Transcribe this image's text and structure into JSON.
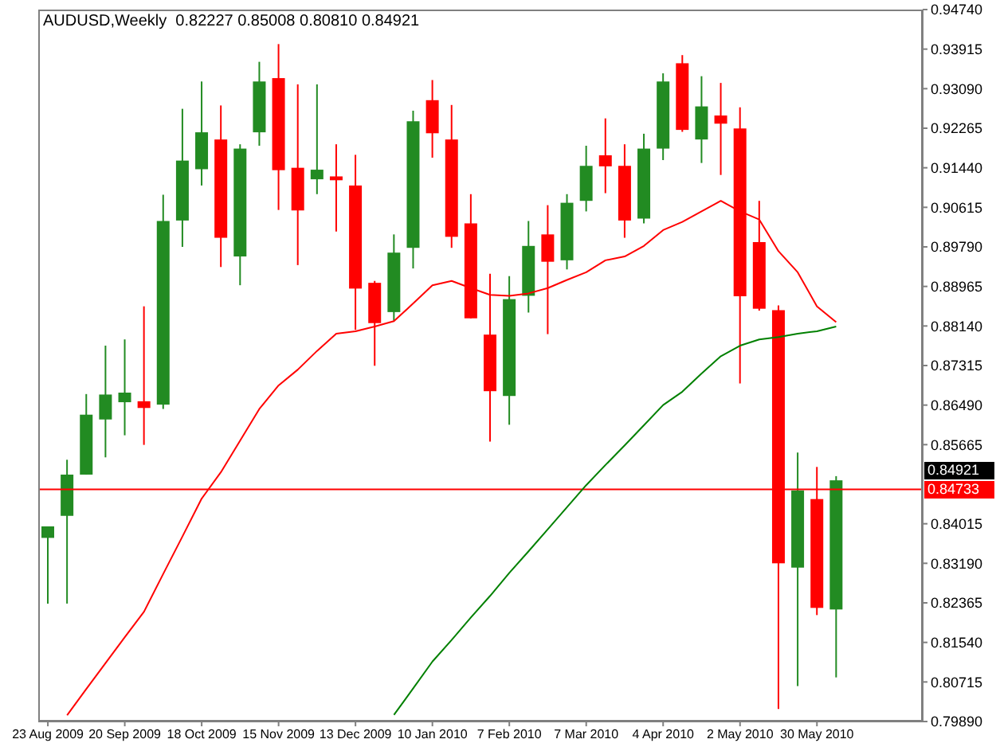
{
  "chart_data": {
    "type": "candlestick",
    "title": "AUDUSD,Weekly  0.82227 0.85008 0.80810 0.84921",
    "categories": [
      "23 Aug 2009",
      null,
      null,
      null,
      "20 Sep 2009",
      null,
      null,
      null,
      "18 Oct 2009",
      null,
      null,
      null,
      "15 Nov 2009",
      null,
      null,
      null,
      "13 Dec 2009",
      null,
      null,
      null,
      "10 Jan 2010",
      null,
      null,
      null,
      "7 Feb 2010",
      null,
      null,
      null,
      "7 Mar 2010",
      null,
      null,
      null,
      "4 Apr 2010",
      null,
      null,
      null,
      "2 May 2010",
      null,
      null,
      null,
      "30 May 2010",
      null
    ],
    "ohlc": [
      [
        0.8372,
        0.8396,
        0.8235,
        0.8396
      ],
      [
        0.8418,
        0.8535,
        0.8235,
        0.8504
      ],
      [
        0.8504,
        0.8672,
        0.8504,
        0.8629
      ],
      [
        0.8619,
        0.8773,
        0.854,
        0.8671
      ],
      [
        0.8655,
        0.8786,
        0.8586,
        0.8675
      ],
      [
        0.8657,
        0.8855,
        0.8566,
        0.8643
      ],
      [
        0.865,
        0.9088,
        0.8641,
        0.9033
      ],
      [
        0.9034,
        0.9267,
        0.8979,
        0.9159
      ],
      [
        0.9141,
        0.9324,
        0.9107,
        0.9218
      ],
      [
        0.9203,
        0.9274,
        0.8937,
        0.8998
      ],
      [
        0.8959,
        0.9193,
        0.8899,
        0.9184
      ],
      [
        0.9218,
        0.9365,
        0.919,
        0.9324
      ],
      [
        0.9331,
        0.9402,
        0.9056,
        0.9139
      ],
      [
        0.9144,
        0.9318,
        0.8941,
        0.9055
      ],
      [
        0.912,
        0.9318,
        0.9089,
        0.914
      ],
      [
        0.9126,
        0.9193,
        0.9011,
        0.9118
      ],
      [
        0.9107,
        0.9171,
        0.8806,
        0.8892
      ],
      [
        0.8904,
        0.8908,
        0.8731,
        0.882
      ],
      [
        0.8843,
        0.9005,
        0.8825,
        0.8967
      ],
      [
        0.8977,
        0.9263,
        0.8934,
        0.9241
      ],
      [
        0.9285,
        0.9327,
        0.9165,
        0.9216
      ],
      [
        0.9203,
        0.9275,
        0.8977,
        0.9
      ],
      [
        0.9028,
        0.9089,
        0.883,
        0.883
      ],
      [
        0.8796,
        0.8923,
        0.8573,
        0.8678
      ],
      [
        0.8668,
        0.8918,
        0.8608,
        0.887
      ],
      [
        0.8877,
        0.9033,
        0.8842,
        0.8981
      ],
      [
        0.9005,
        0.9066,
        0.8797,
        0.8948
      ],
      [
        0.8951,
        0.9089,
        0.8932,
        0.9071
      ],
      [
        0.9075,
        0.919,
        0.9053,
        0.9148
      ],
      [
        0.917,
        0.9247,
        0.9091,
        0.9147
      ],
      [
        0.9148,
        0.9193,
        0.8998,
        0.9034
      ],
      [
        0.9038,
        0.9215,
        0.9028,
        0.9184
      ],
      [
        0.9184,
        0.9341,
        0.916,
        0.9324
      ],
      [
        0.9362,
        0.9379,
        0.9219,
        0.9223
      ],
      [
        0.9203,
        0.9335,
        0.9154,
        0.9272
      ],
      [
        0.9253,
        0.9321,
        0.9129,
        0.9236
      ],
      [
        0.9226,
        0.927,
        0.8694,
        0.8876
      ],
      [
        0.8989,
        0.9075,
        0.8846,
        0.885
      ],
      [
        0.8847,
        0.8857,
        0.8015,
        0.8319
      ],
      [
        0.831,
        0.855,
        0.8063,
        0.8471
      ],
      [
        0.8453,
        0.852,
        0.8211,
        0.8226
      ],
      [
        0.82227,
        0.85008,
        0.8081,
        0.84921
      ]
    ],
    "colors": [
      "#228b22",
      "#228b22",
      "#228b22",
      "#228b22",
      "#228b22",
      "#ff0000",
      "#228b22",
      "#228b22",
      "#228b22",
      "#ff0000",
      "#228b22",
      "#228b22",
      "#ff0000",
      "#ff0000",
      "#228b22",
      "#ff0000",
      "#ff0000",
      "#ff0000",
      "#228b22",
      "#228b22",
      "#ff0000",
      "#ff0000",
      "#ff0000",
      "#ff0000",
      "#228b22",
      "#228b22",
      "#ff0000",
      "#228b22",
      "#228b22",
      "#ff0000",
      "#ff0000",
      "#228b22",
      "#228b22",
      "#ff0000",
      "#228b22",
      "#ff0000",
      "#ff0000",
      "#ff0000",
      "#ff0000",
      "#228b22",
      "#ff0000",
      "#228b22"
    ],
    "series": [
      {
        "type": "line",
        "color": "#ff0000",
        "values": [
          null,
          0.8002,
          0.8057,
          0.8111,
          0.8165,
          0.8218,
          0.8297,
          0.8375,
          0.8454,
          0.8509,
          0.8575,
          0.8641,
          0.869,
          0.8723,
          0.8762,
          0.8798,
          0.8803,
          0.8813,
          0.8824,
          0.8861,
          0.8899,
          0.8908,
          0.8893,
          0.8879,
          0.8877,
          0.8882,
          0.8893,
          0.891,
          0.8926,
          0.8951,
          0.8959,
          0.8981,
          0.9014,
          0.9031,
          0.9053,
          0.9075,
          0.9053,
          0.9036,
          0.897,
          0.8926,
          0.8855,
          0.8822
        ]
      },
      {
        "type": "line",
        "color": "#008000",
        "values": [
          null,
          null,
          null,
          null,
          null,
          null,
          null,
          null,
          null,
          null,
          null,
          null,
          null,
          null,
          null,
          null,
          null,
          null,
          0.8003,
          0.8058,
          0.8114,
          0.8159,
          0.8206,
          0.8251,
          0.8299,
          0.8344,
          0.839,
          0.8436,
          0.8482,
          0.8524,
          0.8565,
          0.8607,
          0.8649,
          0.8677,
          0.8715,
          0.8751,
          0.8773,
          0.8786,
          0.8791,
          0.8798,
          0.8803,
          0.8813
        ]
      }
    ],
    "ylim": [
      0.7989,
      0.9474
    ],
    "yticks": [
      {
        "value": 0.7989,
        "label": "0.79890"
      },
      {
        "value": 0.80715,
        "label": "0.80715"
      },
      {
        "value": 0.8154,
        "label": "0.81540"
      },
      {
        "value": 0.82365,
        "label": "0.82365"
      },
      {
        "value": 0.8319,
        "label": "0.83190"
      },
      {
        "value": 0.84015,
        "label": "0.84015"
      },
      {
        "value": 0.85665,
        "label": "0.85665"
      },
      {
        "value": 0.8649,
        "label": "0.86490"
      },
      {
        "value": 0.87315,
        "label": "0.87315"
      },
      {
        "value": 0.8814,
        "label": "0.88140"
      },
      {
        "value": 0.88965,
        "label": "0.88965"
      },
      {
        "value": 0.8979,
        "label": "0.89790"
      },
      {
        "value": 0.90615,
        "label": "0.90615"
      },
      {
        "value": 0.9144,
        "label": "0.91440"
      },
      {
        "value": 0.92265,
        "label": "0.92265"
      },
      {
        "value": 0.9309,
        "label": "0.93090"
      },
      {
        "value": 0.93915,
        "label": "0.93915"
      },
      {
        "value": 0.9474,
        "label": "0.94740"
      }
    ],
    "ref_lines": [
      {
        "axis": "y",
        "value": 0.84733,
        "label": "0.84733",
        "color": "#ff0000"
      }
    ],
    "annotations": [
      "0.84921"
    ],
    "grid": false,
    "legend": false
  }
}
